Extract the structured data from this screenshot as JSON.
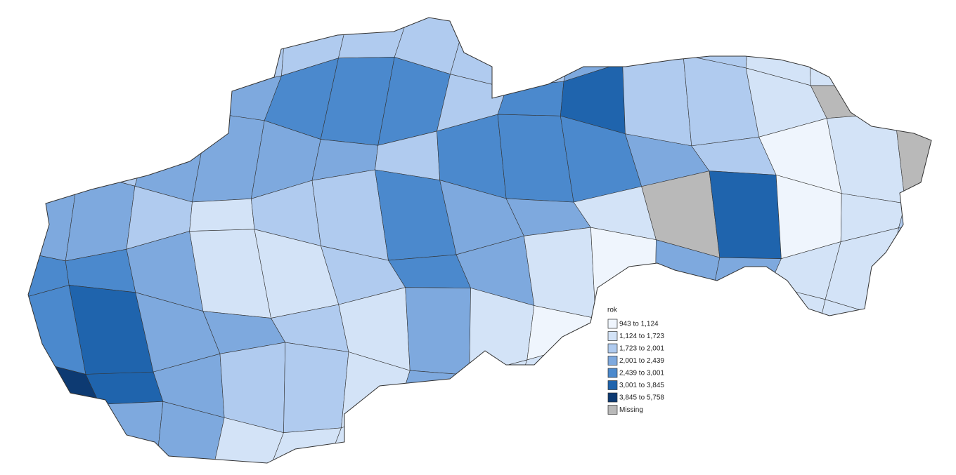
{
  "legend": {
    "title": "rok",
    "items": [
      {
        "label": "943 to 1,124",
        "color": "#eff5fd"
      },
      {
        "label": "1,124 to 1,723",
        "color": "#d3e3f7"
      },
      {
        "label": "1,723 to 2,001",
        "color": "#b0cbef"
      },
      {
        "label": "2,001 to 2,439",
        "color": "#7ea9de"
      },
      {
        "label": "2,439 to 3,001",
        "color": "#4b89cd"
      },
      {
        "label": "3,001 to 3,845",
        "color": "#1f64ad"
      },
      {
        "label": "3,845 to 5,758",
        "color": "#0d3a72"
      },
      {
        "label": "Missing",
        "color": "#b9b9b9"
      }
    ]
  }
}
